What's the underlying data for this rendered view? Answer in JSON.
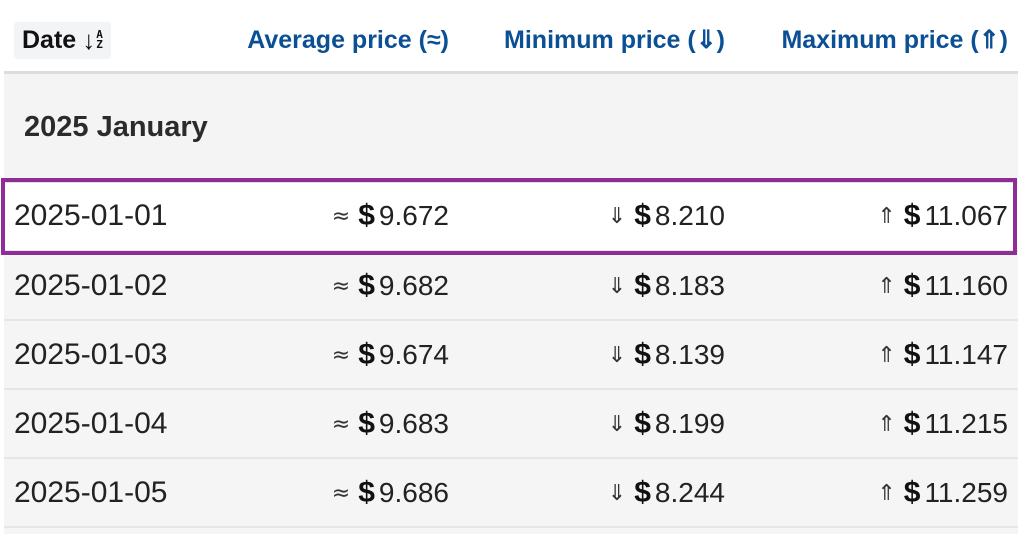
{
  "header": {
    "date_label": "Date",
    "average_label": "Average price (≈)",
    "minimum_label": "Minimum price (⇓)",
    "maximum_label": "Maximum price (⇑)"
  },
  "sort_icon": "sort-ascending-az-icon",
  "month_group": "2025 January",
  "symbols": {
    "average": "≈",
    "minimum": "⇓",
    "maximum": "⇑",
    "currency": "$"
  },
  "rows": [
    {
      "date": "2025-01-01",
      "average": "9.672",
      "minimum": "8.210",
      "maximum": "11.067"
    },
    {
      "date": "2025-01-02",
      "average": "9.682",
      "minimum": "8.183",
      "maximum": "11.160"
    },
    {
      "date": "2025-01-03",
      "average": "9.674",
      "minimum": "8.139",
      "maximum": "11.147"
    },
    {
      "date": "2025-01-04",
      "average": "9.683",
      "minimum": "8.199",
      "maximum": "11.215"
    },
    {
      "date": "2025-01-05",
      "average": "9.686",
      "minimum": "8.244",
      "maximum": "11.259"
    }
  ],
  "colors": {
    "header_text": "#0b4f95",
    "highlight_border": "#8e2d96"
  }
}
